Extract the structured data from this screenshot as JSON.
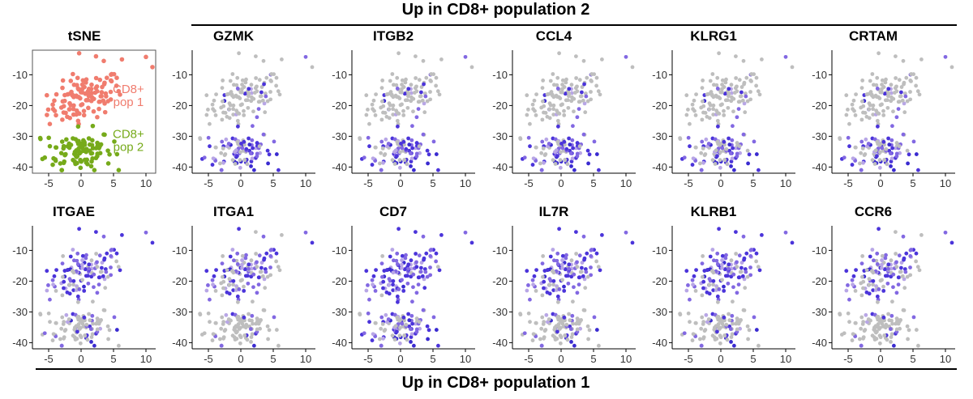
{
  "headers": {
    "top": "Up in CD8+ population 2",
    "bottom": "Up in CD8+ population 1"
  },
  "colors": {
    "pop1": "#F07C6E",
    "pop2": "#76AA1A",
    "grey": "#BEBEBE",
    "light_purple": "#B8A6E6",
    "mid_purple": "#8268E2",
    "dark_purple": "#4B34DA",
    "blue": "#3A2BD0"
  },
  "chart_data": [
    {
      "type": "scatter",
      "title": "tSNE",
      "panel": "tsne",
      "x_ticks": [
        "-5",
        "0",
        "5",
        "10"
      ],
      "y_ticks": [
        "-10",
        "-20",
        "-30",
        "-40"
      ],
      "xlim": [
        -7.5,
        11.5
      ],
      "ylim": [
        -42,
        -2
      ],
      "annotations": [
        {
          "text_lines": [
            "CD8+",
            "pop 1"
          ],
          "color": "#F07C6E",
          "x": 7.3,
          "y": -16
        },
        {
          "text_lines": [
            "CD8+",
            "pop 2"
          ],
          "color": "#76AA1A",
          "x": 7.3,
          "y": -30.5
        }
      ],
      "marker_rule": "pop1 points colored pop1, pop2 points colored pop2"
    },
    {
      "type": "scatter",
      "title": "GZMK",
      "panel": "gene",
      "high_in": "pop2",
      "x_ticks": [
        "-5",
        "0",
        "5",
        "10"
      ],
      "y_ticks": [
        "-10",
        "-20",
        "-30",
        "-40"
      ],
      "xlim": [
        -7.5,
        11.5
      ],
      "ylim": [
        -42,
        -2
      ]
    },
    {
      "type": "scatter",
      "title": "ITGB2",
      "panel": "gene",
      "high_in": "pop2",
      "x_ticks": [
        "-5",
        "0",
        "5",
        "10"
      ],
      "y_ticks": [
        "-10",
        "-20",
        "-30",
        "-40"
      ],
      "xlim": [
        -7.5,
        11.5
      ],
      "ylim": [
        -42,
        -2
      ]
    },
    {
      "type": "scatter",
      "title": "CCL4",
      "panel": "gene",
      "high_in": "pop2",
      "x_ticks": [
        "-5",
        "0",
        "5",
        "10"
      ],
      "y_ticks": [
        "-10",
        "-20",
        "-30",
        "-40"
      ],
      "xlim": [
        -7.5,
        11.5
      ],
      "ylim": [
        -42,
        -2
      ]
    },
    {
      "type": "scatter",
      "title": "KLRG1",
      "panel": "gene",
      "high_in": "pop2",
      "x_ticks": [
        "-5",
        "0",
        "5",
        "10"
      ],
      "y_ticks": [
        "-10",
        "-20",
        "-30",
        "-40"
      ],
      "xlim": [
        -7.5,
        11.5
      ],
      "ylim": [
        -42,
        -2
      ]
    },
    {
      "type": "scatter",
      "title": "CRTAM",
      "panel": "gene",
      "high_in": "pop2",
      "x_ticks": [
        "-5",
        "0",
        "5",
        "10"
      ],
      "y_ticks": [
        "-10",
        "-20",
        "-30",
        "-40"
      ],
      "xlim": [
        -7.5,
        11.5
      ],
      "ylim": [
        -42,
        -2
      ]
    },
    {
      "type": "scatter",
      "title": "ITGAE",
      "panel": "gene",
      "high_in": "pop1",
      "x_ticks": [
        "-5",
        "0",
        "5",
        "10"
      ],
      "y_ticks": [
        "-10",
        "-20",
        "-30",
        "-40"
      ],
      "xlim": [
        -7.5,
        11.5
      ],
      "ylim": [
        -42,
        -2
      ]
    },
    {
      "type": "scatter",
      "title": "ITGA1",
      "panel": "gene",
      "high_in": "pop1",
      "x_ticks": [
        "-5",
        "0",
        "5",
        "10"
      ],
      "y_ticks": [
        "-10",
        "-20",
        "-30",
        "-40"
      ],
      "xlim": [
        -7.5,
        11.5
      ],
      "ylim": [
        -42,
        -2
      ]
    },
    {
      "type": "scatter",
      "title": "CD7",
      "panel": "gene",
      "high_in": "pop1",
      "x_ticks": [
        "-5",
        "0",
        "5",
        "10"
      ],
      "y_ticks": [
        "-10",
        "-20",
        "-30",
        "-40"
      ],
      "xlim": [
        -7.5,
        11.5
      ],
      "ylim": [
        -42,
        -2
      ]
    },
    {
      "type": "scatter",
      "title": "IL7R",
      "panel": "gene",
      "high_in": "pop1",
      "x_ticks": [
        "-5",
        "0",
        "5",
        "10"
      ],
      "y_ticks": [
        "-10",
        "-20",
        "-30",
        "-40"
      ],
      "xlim": [
        -7.5,
        11.5
      ],
      "ylim": [
        -42,
        -2
      ]
    },
    {
      "type": "scatter",
      "title": "KLRB1",
      "panel": "gene",
      "high_in": "pop1",
      "x_ticks": [
        "-5",
        "0",
        "5",
        "10"
      ],
      "y_ticks": [
        "-10",
        "-20",
        "-30",
        "-40"
      ],
      "xlim": [
        -7.5,
        11.5
      ],
      "ylim": [
        -42,
        -2
      ]
    },
    {
      "type": "scatter",
      "title": "CCR6",
      "panel": "gene",
      "high_in": "pop1",
      "x_ticks": [
        "-5",
        "0",
        "5",
        "10"
      ],
      "y_ticks": [
        "-10",
        "-20",
        "-30",
        "-40"
      ],
      "xlim": [
        -7.5,
        11.5
      ],
      "ylim": [
        -42,
        -2
      ]
    }
  ]
}
